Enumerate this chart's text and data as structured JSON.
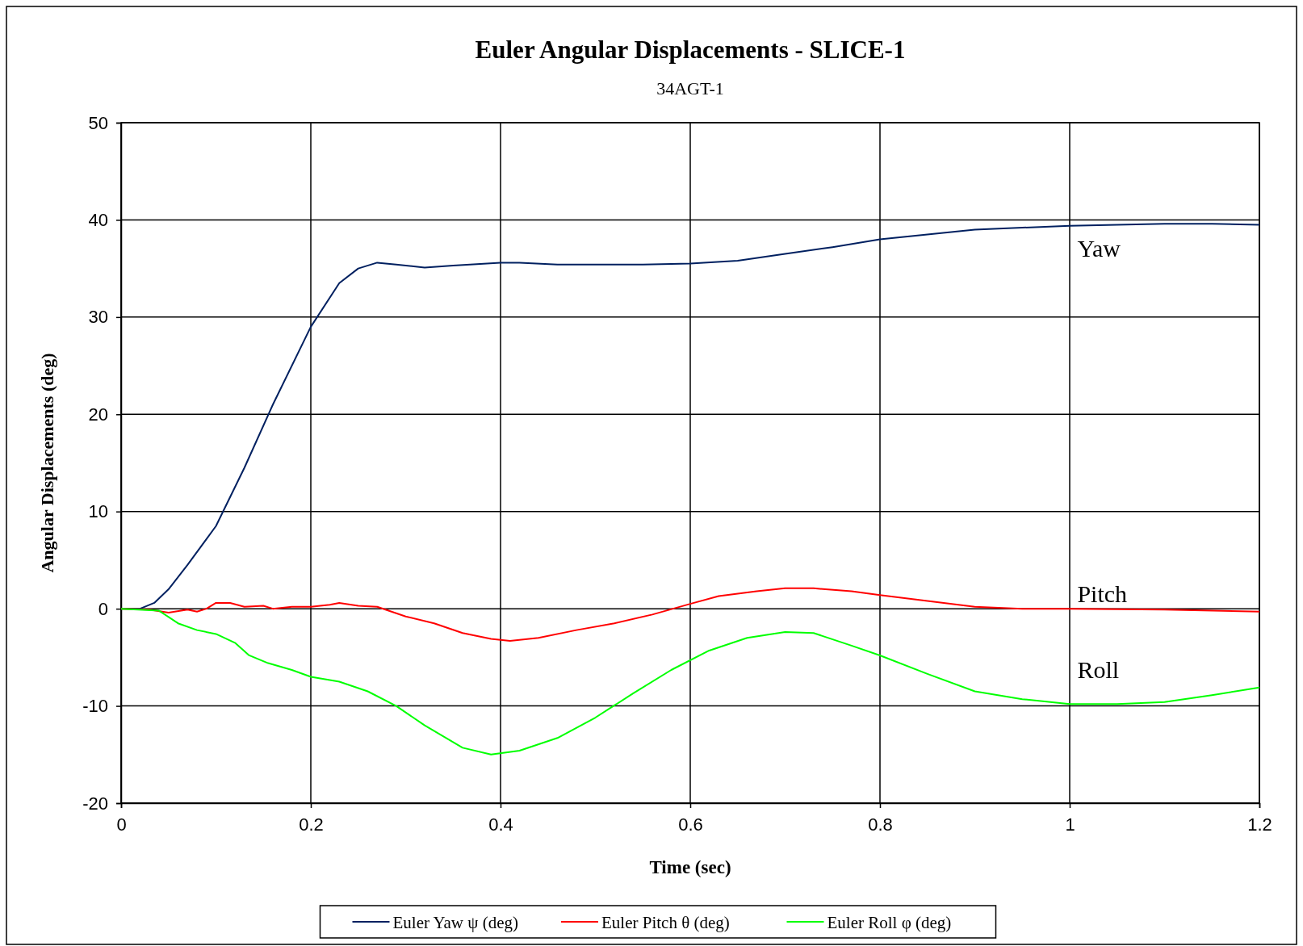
{
  "chart_data": {
    "type": "line",
    "title": "Euler Angular Displacements - SLICE-1",
    "subtitle": "34AGT-1",
    "xlabel": "Time (sec)",
    "ylabel": "Angular Displacements (deg)",
    "xlim": [
      0,
      1.2
    ],
    "xticks": [
      0,
      0.2,
      0.4,
      0.6,
      0.8,
      1,
      1.2
    ],
    "ylim": [
      -20,
      50
    ],
    "yticks": [
      -20,
      -10,
      0,
      10,
      20,
      30,
      40,
      50
    ],
    "grid": true,
    "legend": "bottom",
    "line_style": "solid",
    "marker": "none",
    "series": [
      {
        "name": "Euler Yaw ψ (deg)",
        "color": "#002060",
        "x": [
          0,
          0.02,
          0.035,
          0.05,
          0.07,
          0.1,
          0.13,
          0.16,
          0.2,
          0.23,
          0.25,
          0.27,
          0.29,
          0.32,
          0.35,
          0.4,
          0.42,
          0.46,
          0.5,
          0.55,
          0.6,
          0.65,
          0.7,
          0.75,
          0.8,
          0.85,
          0.9,
          0.95,
          1.0,
          1.05,
          1.1,
          1.15,
          1.2
        ],
        "values": [
          0,
          0,
          0.6,
          2,
          4.5,
          8.5,
          14.5,
          21,
          29,
          33.5,
          35,
          35.6,
          35.4,
          35.1,
          35.3,
          35.6,
          35.6,
          35.4,
          35.4,
          35.4,
          35.5,
          35.8,
          36.5,
          37.2,
          38,
          38.5,
          39,
          39.2,
          39.4,
          39.5,
          39.6,
          39.6,
          39.5
        ]
      },
      {
        "name": "Euler Pitch θ (deg)",
        "color": "#ff0000",
        "x": [
          0,
          0.03,
          0.05,
          0.07,
          0.08,
          0.09,
          0.1,
          0.115,
          0.13,
          0.15,
          0.16,
          0.18,
          0.2,
          0.22,
          0.23,
          0.25,
          0.27,
          0.3,
          0.33,
          0.36,
          0.39,
          0.41,
          0.44,
          0.48,
          0.52,
          0.56,
          0.6,
          0.63,
          0.67,
          0.7,
          0.73,
          0.77,
          0.8,
          0.85,
          0.9,
          0.95,
          1.0,
          1.1,
          1.2
        ],
        "values": [
          0,
          -0.1,
          -0.4,
          -0.1,
          -0.3,
          0,
          0.6,
          0.6,
          0.2,
          0.3,
          0,
          0.2,
          0.2,
          0.4,
          0.6,
          0.3,
          0.2,
          -0.8,
          -1.5,
          -2.5,
          -3.1,
          -3.3,
          -3,
          -2.2,
          -1.5,
          -0.6,
          0.5,
          1.3,
          1.8,
          2.1,
          2.1,
          1.8,
          1.4,
          0.8,
          0.2,
          0,
          0,
          -0.1,
          -0.3
        ]
      },
      {
        "name": "Euler Roll φ (deg)",
        "color": "#00ff00",
        "x": [
          0,
          0.04,
          0.06,
          0.08,
          0.1,
          0.12,
          0.135,
          0.155,
          0.18,
          0.2,
          0.23,
          0.26,
          0.29,
          0.32,
          0.36,
          0.39,
          0.42,
          0.46,
          0.5,
          0.54,
          0.58,
          0.62,
          0.66,
          0.7,
          0.73,
          0.77,
          0.8,
          0.85,
          0.9,
          0.95,
          1.0,
          1.05,
          1.1,
          1.15,
          1.2
        ],
        "values": [
          0,
          -0.2,
          -1.5,
          -2.2,
          -2.6,
          -3.5,
          -4.8,
          -5.6,
          -6.3,
          -7,
          -7.5,
          -8.5,
          -10,
          -12,
          -14.3,
          -15,
          -14.6,
          -13.3,
          -11.2,
          -8.7,
          -6.3,
          -4.3,
          -3,
          -2.4,
          -2.5,
          -3.8,
          -4.8,
          -6.7,
          -8.5,
          -9.3,
          -9.8,
          -9.8,
          -9.6,
          -8.9,
          -8.1
        ]
      }
    ],
    "annotations": [
      "Yaw",
      "Pitch",
      "Roll"
    ]
  }
}
